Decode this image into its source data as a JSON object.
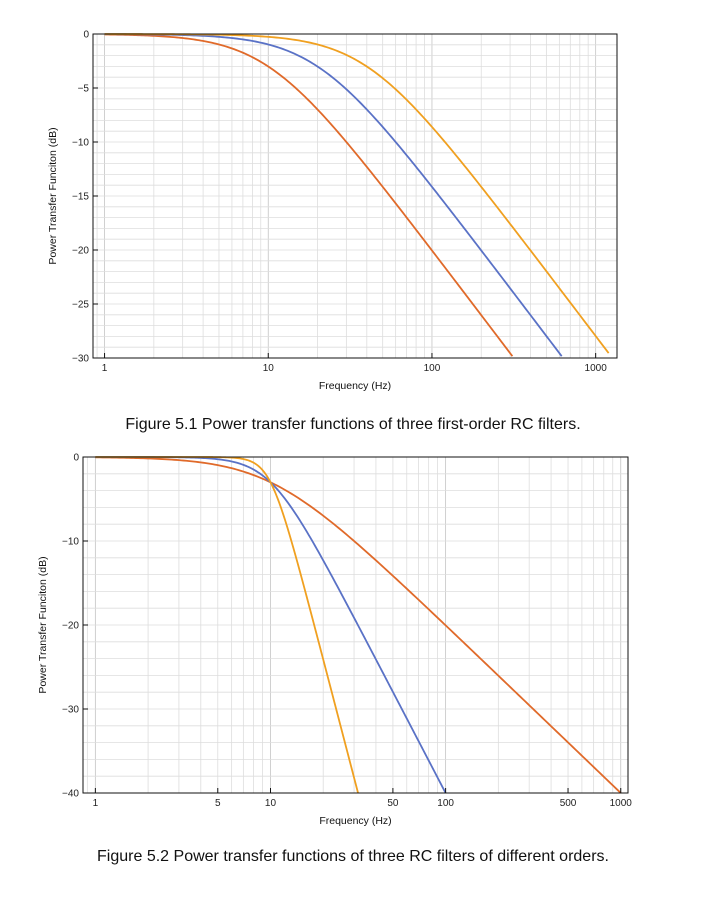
{
  "chart_data": [
    {
      "type": "line",
      "title": "",
      "xlabel": "Frequency (Hz)",
      "ylabel": "Power Transfer Funciton (dB)",
      "xscale": "log",
      "xlim": [
        0.85,
        1350
      ],
      "ylim": [
        -30,
        0
      ],
      "xticks": [
        1,
        10,
        100,
        1000
      ],
      "xtick_labels": [
        "1",
        "10",
        "100",
        "1000"
      ],
      "yticks": [
        0,
        -5,
        -10,
        -15,
        -20,
        -25,
        -30
      ],
      "ytick_labels": [
        "0",
        "−5",
        "−10",
        "−15",
        "−20",
        "−25",
        "−30"
      ],
      "grid": true,
      "legend": "none",
      "series": [
        {
          "color": "#e06a2a",
          "cutoff_hz": 10,
          "order": 1,
          "x": [
            1,
            2,
            5,
            10,
            20,
            50,
            100,
            200,
            310
          ],
          "y": [
            -0.04,
            -0.17,
            -0.97,
            -3.01,
            -6.99,
            -14.15,
            -20.04,
            -26.03,
            -29.85
          ]
        },
        {
          "color": "#5a72c6",
          "cutoff_hz": 20,
          "order": 1,
          "x": [
            1,
            5,
            10,
            20,
            50,
            100,
            200,
            500,
            620
          ],
          "y": [
            -0.01,
            -0.26,
            -0.97,
            -3.01,
            -8.6,
            -14.15,
            -20.04,
            -27.96,
            -29.83
          ]
        },
        {
          "color": "#f0a020",
          "cutoff_hz": 40,
          "order": 1,
          "x": [
            1,
            10,
            20,
            40,
            100,
            200,
            500,
            1000,
            1200
          ],
          "y": [
            0,
            -0.26,
            -0.97,
            -3.01,
            -8.6,
            -14.15,
            -21.96,
            -27.96,
            -29.54
          ]
        }
      ]
    },
    {
      "type": "line",
      "title": "",
      "xlabel": "Frequency (Hz)",
      "ylabel": "Power Transfer Funciton (dB)",
      "xscale": "log",
      "xlim": [
        0.85,
        1100
      ],
      "ylim": [
        -40,
        0
      ],
      "xticks": [
        1,
        5,
        10,
        50,
        100,
        500,
        1000
      ],
      "xtick_labels": [
        "1",
        "5",
        "10",
        "50",
        "100",
        "500",
        "1000"
      ],
      "yticks": [
        0,
        -10,
        -20,
        -30,
        -40
      ],
      "ytick_labels": [
        "0",
        "−10",
        "−20",
        "−30",
        "−40"
      ],
      "grid": true,
      "legend": "none",
      "series": [
        {
          "color": "#e06a2a",
          "cutoff_hz": 10,
          "order": 1,
          "x": [
            1,
            5,
            10,
            20,
            50,
            100,
            200,
            500,
            1000
          ],
          "y": [
            -0.04,
            -0.97,
            -3.01,
            -6.99,
            -14.15,
            -20.04,
            -26.03,
            -33.98,
            -40.0
          ]
        },
        {
          "color": "#5a72c6",
          "cutoff_hz": 10,
          "order": 2,
          "x": [
            1,
            5,
            10,
            20,
            50,
            100
          ],
          "y": [
            0,
            -0.26,
            -3.01,
            -12.3,
            -27.96,
            -40.0
          ]
        },
        {
          "color": "#f0a020",
          "cutoff_hz": 10,
          "order": 4,
          "x": [
            1,
            5,
            10,
            15,
            20,
            31.6
          ],
          "y": [
            0,
            -0.03,
            -3.01,
            -14.3,
            -24.1,
            -40.0
          ]
        }
      ]
    }
  ],
  "captions": {
    "fig1": "Figure 5.1 Power transfer functions of three first-order RC filters.",
    "fig2": "Figure 5.2 Power transfer functions of three RC filters of different orders."
  }
}
